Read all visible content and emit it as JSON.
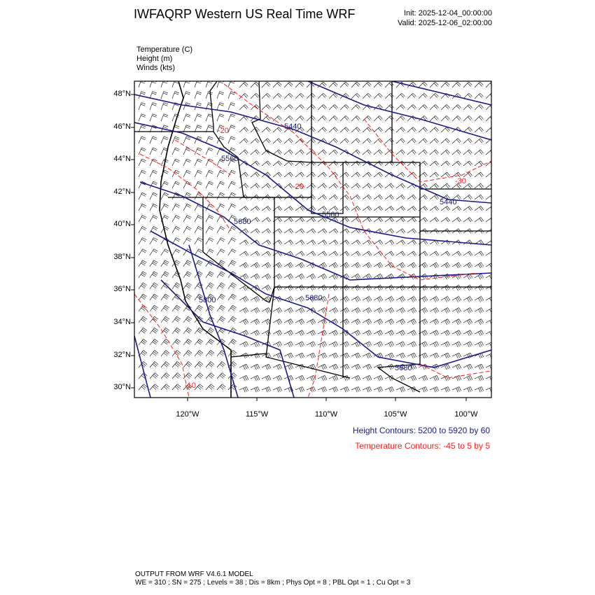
{
  "header": {
    "title": "IWFAQRP Western US Real Time WRF",
    "init": "Init: 2025-12-04_00:00:00",
    "valid": "Valid: 2025-12-06_02:00:00"
  },
  "fields": [
    "Temperature   (C)",
    "Height   (m)",
    "Winds   (kts)"
  ],
  "axes": {
    "lat_labels": [
      "48°N",
      "46°N",
      "44°N",
      "42°N",
      "40°N",
      "38°N",
      "36°N",
      "34°N",
      "32°N",
      "30°N"
    ],
    "lon_labels": [
      "120°W",
      "115°W",
      "110°W",
      "105°W",
      "100°W"
    ]
  },
  "contour_labels": {
    "height": [
      "5440",
      "5560",
      "5560",
      "5680",
      "5440",
      "5800",
      "5680",
      "5680"
    ],
    "temperature": [
      "-20",
      "-20",
      "-30",
      "-10"
    ]
  },
  "legend": {
    "height": "Height Contours: 5200 to 5920 by 60",
    "temperature": "Temperature Contours: -45 to 5 by 5"
  },
  "colors": {
    "height": "#1a1a8c",
    "temperature": "#ff1a1a",
    "borders": "#000000"
  },
  "footer": {
    "line1": "OUTPUT FROM WRF V4.6.1 MODEL",
    "line2": "WE = 310 ; SN = 275 ; Levels = 38 ; Dis = 8km ; Phys Opt = 8 ; PBL Opt = 1 ; Cu Opt = 3"
  }
}
